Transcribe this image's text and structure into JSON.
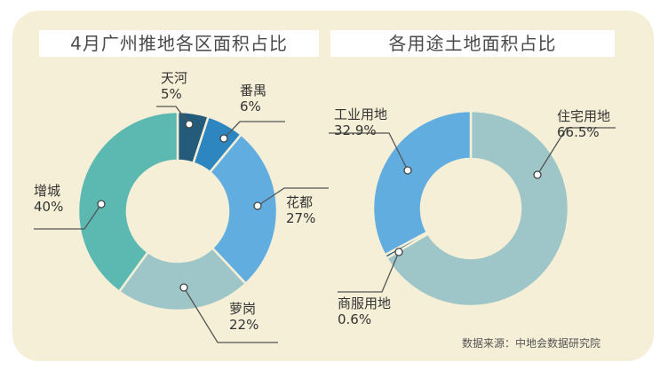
{
  "chart_data": [
    {
      "type": "pie",
      "title": "4月广州推地各区面积占比",
      "slices": [
        {
          "name": "天河",
          "value": 5,
          "label": "5%",
          "color": "#245a7a"
        },
        {
          "name": "番禺",
          "value": 6,
          "label": "6%",
          "color": "#2e86c1"
        },
        {
          "name": "花都",
          "value": 27,
          "label": "27%",
          "color": "#62ade0"
        },
        {
          "name": "萝岗",
          "value": 22,
          "label": "22%",
          "color": "#9ec5c7"
        },
        {
          "name": "增城",
          "value": 40,
          "label": "40%",
          "color": "#5bb9b2"
        }
      ]
    },
    {
      "type": "pie",
      "title": "各用途土地面积占比",
      "slices": [
        {
          "name": "住宅用地",
          "value": 66.5,
          "label": "66.5%",
          "color": "#9ec5c7"
        },
        {
          "name": "商服用地",
          "value": 0.6,
          "label": "0.6%",
          "color": "#245a7a"
        },
        {
          "name": "工业用地",
          "value": 32.9,
          "label": "32.9%",
          "color": "#62ade0"
        }
      ]
    }
  ],
  "footer": {
    "source": "数据来源：中地会数据研究院"
  }
}
